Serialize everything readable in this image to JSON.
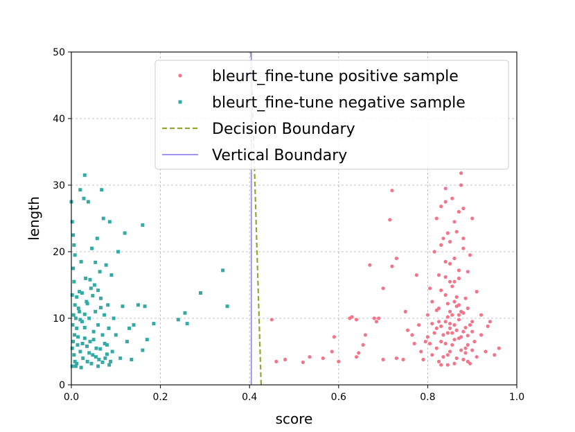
{
  "chart_data": {
    "type": "scatter",
    "xlabel": "score",
    "ylabel": "length",
    "xlim": [
      0.0,
      1.0
    ],
    "ylim": [
      0,
      50
    ],
    "xticks": [
      "0.0",
      "0.2",
      "0.4",
      "0.6",
      "0.8",
      "1.0"
    ],
    "yticks": [
      "0",
      "10",
      "20",
      "30",
      "40",
      "50"
    ],
    "grid": true,
    "legend_position": "top-right",
    "colors": {
      "positive": "#f4748a",
      "negative": "#33aba4",
      "decision": "#96a431",
      "vertical": "#a192f0"
    },
    "series": [
      {
        "name": "bleurt_fine-tune positive sample",
        "kind": "scatter",
        "marker": "circle",
        "points": [
          [
            0.45,
            9.8
          ],
          [
            0.46,
            3.5
          ],
          [
            0.48,
            3.8
          ],
          [
            0.52,
            3.4
          ],
          [
            0.535,
            4.2
          ],
          [
            0.565,
            4.0
          ],
          [
            0.585,
            5.0
          ],
          [
            0.59,
            7.2
          ],
          [
            0.6,
            3.5
          ],
          [
            0.625,
            10.0
          ],
          [
            0.63,
            10.2
          ],
          [
            0.64,
            9.8
          ],
          [
            0.64,
            4.2
          ],
          [
            0.645,
            4.8
          ],
          [
            0.655,
            6.0
          ],
          [
            0.66,
            7.5
          ],
          [
            0.67,
            18.0
          ],
          [
            0.68,
            10.0
          ],
          [
            0.685,
            9.5
          ],
          [
            0.69,
            10.0
          ],
          [
            0.7,
            14.5
          ],
          [
            0.7,
            3.8
          ],
          [
            0.715,
            24.8
          ],
          [
            0.72,
            29.2
          ],
          [
            0.72,
            17.8
          ],
          [
            0.73,
            19.0
          ],
          [
            0.73,
            4.0
          ],
          [
            0.745,
            3.8
          ],
          [
            0.75,
            11.0
          ],
          [
            0.755,
            8.2
          ],
          [
            0.765,
            7.5
          ],
          [
            0.77,
            6.2
          ],
          [
            0.775,
            16.5
          ],
          [
            0.78,
            9.0
          ],
          [
            0.785,
            5.0
          ],
          [
            0.79,
            3.8
          ],
          [
            0.795,
            6.5
          ],
          [
            0.8,
            10.5
          ],
          [
            0.8,
            7.2
          ],
          [
            0.805,
            14.5
          ],
          [
            0.81,
            4.5
          ],
          [
            0.81,
            12.5
          ],
          [
            0.815,
            20.0
          ],
          [
            0.82,
            8.5
          ],
          [
            0.82,
            25.0
          ],
          [
            0.82,
            5.5
          ],
          [
            0.825,
            16.5
          ],
          [
            0.825,
            11.5
          ],
          [
            0.83,
            26.8
          ],
          [
            0.83,
            6.5
          ],
          [
            0.83,
            3.0
          ],
          [
            0.835,
            22.0
          ],
          [
            0.84,
            18.5
          ],
          [
            0.84,
            9.5
          ],
          [
            0.84,
            13.5
          ],
          [
            0.84,
            29.5
          ],
          [
            0.845,
            7.8
          ],
          [
            0.845,
            4.5
          ],
          [
            0.85,
            15.5
          ],
          [
            0.85,
            21.5
          ],
          [
            0.85,
            11.0
          ],
          [
            0.85,
            8.5
          ],
          [
            0.855,
            6.0
          ],
          [
            0.855,
            28.0
          ],
          [
            0.86,
            12.5
          ],
          [
            0.86,
            9.0
          ],
          [
            0.86,
            19.0
          ],
          [
            0.865,
            23.0
          ],
          [
            0.865,
            4.0
          ],
          [
            0.87,
            10.5
          ],
          [
            0.87,
            7.0
          ],
          [
            0.87,
            16.0
          ],
          [
            0.875,
            31.8
          ],
          [
            0.875,
            30.0
          ],
          [
            0.88,
            20.5
          ],
          [
            0.88,
            26.5
          ],
          [
            0.88,
            8.0
          ],
          [
            0.885,
            13.0
          ],
          [
            0.885,
            5.5
          ],
          [
            0.89,
            11.5
          ],
          [
            0.89,
            3.5
          ],
          [
            0.895,
            19.5
          ],
          [
            0.9,
            25.0
          ],
          [
            0.9,
            9.5
          ],
          [
            0.905,
            6.5
          ],
          [
            0.91,
            14.0
          ],
          [
            0.91,
            4.2
          ],
          [
            0.92,
            10.5
          ],
          [
            0.92,
            7.5
          ],
          [
            0.93,
            5.0
          ],
          [
            0.935,
            8.8
          ],
          [
            0.94,
            9.5
          ],
          [
            0.95,
            4.5
          ],
          [
            0.96,
            5.5
          ],
          [
            0.83,
            8.8
          ],
          [
            0.835,
            7.5
          ],
          [
            0.84,
            6.2
          ],
          [
            0.845,
            10.2
          ],
          [
            0.85,
            9.2
          ],
          [
            0.855,
            7.8
          ],
          [
            0.86,
            6.8
          ],
          [
            0.865,
            8.2
          ],
          [
            0.87,
            9.8
          ],
          [
            0.875,
            7.2
          ],
          [
            0.88,
            10.8
          ],
          [
            0.885,
            8.6
          ],
          [
            0.89,
            7.4
          ],
          [
            0.895,
            9.0
          ],
          [
            0.9,
            8.0
          ],
          [
            0.845,
            12.2
          ],
          [
            0.855,
            14.8
          ],
          [
            0.865,
            13.2
          ],
          [
            0.87,
            17.2
          ],
          [
            0.86,
            15.5
          ],
          [
            0.85,
            18.2
          ],
          [
            0.84,
            16.2
          ],
          [
            0.83,
            14.2
          ],
          [
            0.825,
            9.5
          ],
          [
            0.82,
            11.2
          ],
          [
            0.815,
            7.8
          ],
          [
            0.81,
            9.2
          ],
          [
            0.805,
            6.2
          ],
          [
            0.875,
            5.2
          ],
          [
            0.88,
            3.8
          ],
          [
            0.885,
            4.8
          ],
          [
            0.89,
            6.0
          ],
          [
            0.895,
            3.2
          ],
          [
            0.9,
            5.2
          ],
          [
            0.86,
            3.2
          ],
          [
            0.85,
            5.0
          ],
          [
            0.845,
            3.0
          ],
          [
            0.835,
            4.2
          ],
          [
            0.825,
            3.5
          ],
          [
            0.87,
            12.0
          ],
          [
            0.875,
            11.0
          ],
          [
            0.865,
            11.8
          ],
          [
            0.855,
            10.5
          ],
          [
            0.845,
            22.8
          ],
          [
            0.86,
            24.5
          ],
          [
            0.87,
            26.0
          ],
          [
            0.84,
            27.5
          ],
          [
            0.83,
            21.0
          ],
          [
            0.88,
            22.0
          ],
          [
            0.89,
            17.0
          ]
        ]
      },
      {
        "name": "bleurt_fine-tune negative sample",
        "kind": "scatter",
        "marker": "square",
        "points": [
          [
            0.0,
            27.5
          ],
          [
            0.002,
            24.5
          ],
          [
            0.004,
            22.5
          ],
          [
            0.006,
            21.0
          ],
          [
            0.008,
            19.5
          ],
          [
            0.004,
            17.5
          ],
          [
            0.006,
            15.5
          ],
          [
            0.002,
            13.5
          ],
          [
            0.008,
            12.0
          ],
          [
            0.005,
            10.5
          ],
          [
            0.003,
            9.0
          ],
          [
            0.007,
            7.5
          ],
          [
            0.004,
            6.5
          ],
          [
            0.002,
            5.5
          ],
          [
            0.006,
            4.5
          ],
          [
            0.008,
            3.5
          ],
          [
            0.01,
            2.8
          ],
          [
            0.012,
            8.5
          ],
          [
            0.014,
            6.0
          ],
          [
            0.016,
            11.5
          ],
          [
            0.018,
            14.0
          ],
          [
            0.02,
            29.3
          ],
          [
            0.02,
            5.0
          ],
          [
            0.022,
            18.5
          ],
          [
            0.024,
            9.5
          ],
          [
            0.026,
            4.0
          ],
          [
            0.028,
            28.0
          ],
          [
            0.03,
            31.5
          ],
          [
            0.03,
            7.0
          ],
          [
            0.032,
            16.0
          ],
          [
            0.034,
            12.5
          ],
          [
            0.036,
            3.5
          ],
          [
            0.038,
            27.5
          ],
          [
            0.04,
            10.0
          ],
          [
            0.042,
            6.5
          ],
          [
            0.044,
            14.5
          ],
          [
            0.046,
            20.5
          ],
          [
            0.048,
            4.5
          ],
          [
            0.05,
            8.0
          ],
          [
            0.052,
            15.0
          ],
          [
            0.054,
            11.0
          ],
          [
            0.056,
            5.5
          ],
          [
            0.058,
            22.0
          ],
          [
            0.06,
            9.0
          ],
          [
            0.062,
            3.8
          ],
          [
            0.064,
            17.0
          ],
          [
            0.066,
            13.0
          ],
          [
            0.068,
            29.3
          ],
          [
            0.07,
            7.5
          ],
          [
            0.072,
            25.0
          ],
          [
            0.074,
            10.5
          ],
          [
            0.076,
            4.0
          ],
          [
            0.078,
            18.0
          ],
          [
            0.08,
            6.0
          ],
          [
            0.082,
            12.0
          ],
          [
            0.084,
            8.5
          ],
          [
            0.086,
            24.5
          ],
          [
            0.088,
            3.5
          ],
          [
            0.09,
            16.5
          ],
          [
            0.092,
            5.0
          ],
          [
            0.095,
            10.0
          ],
          [
            0.1,
            7.5
          ],
          [
            0.105,
            20.0
          ],
          [
            0.11,
            4.0
          ],
          [
            0.115,
            11.8
          ],
          [
            0.12,
            22.8
          ],
          [
            0.125,
            6.5
          ],
          [
            0.13,
            8.5
          ],
          [
            0.135,
            3.8
          ],
          [
            0.14,
            9.0
          ],
          [
            0.15,
            12.0
          ],
          [
            0.16,
            24.0
          ],
          [
            0.16,
            5.2
          ],
          [
            0.165,
            11.8
          ],
          [
            0.17,
            6.8
          ],
          [
            0.185,
            9.2
          ],
          [
            0.24,
            9.8
          ],
          [
            0.255,
            10.8
          ],
          [
            0.26,
            9.2
          ],
          [
            0.29,
            13.8
          ],
          [
            0.34,
            17.2
          ],
          [
            0.35,
            11.8
          ],
          [
            0.01,
            10.0
          ],
          [
            0.015,
            7.2
          ],
          [
            0.02,
            9.8
          ],
          [
            0.025,
            6.2
          ],
          [
            0.03,
            8.6
          ],
          [
            0.035,
            5.8
          ],
          [
            0.04,
            4.8
          ],
          [
            0.045,
            3.2
          ],
          [
            0.05,
            6.8
          ],
          [
            0.055,
            4.2
          ],
          [
            0.06,
            2.8
          ],
          [
            0.065,
            5.4
          ],
          [
            0.07,
            3.4
          ],
          [
            0.075,
            6.2
          ],
          [
            0.08,
            4.6
          ],
          [
            0.085,
            3.0
          ],
          [
            0.012,
            13.2
          ],
          [
            0.018,
            11.0
          ],
          [
            0.024,
            13.8
          ],
          [
            0.03,
            10.6
          ],
          [
            0.036,
            12.2
          ],
          [
            0.042,
            15.8
          ],
          [
            0.048,
            13.4
          ],
          [
            0.054,
            18.4
          ],
          [
            0.06,
            14.2
          ],
          [
            0.066,
            11.6
          ],
          [
            0.002,
            2.8
          ],
          [
            0.012,
            3.2
          ],
          [
            0.022,
            2.6
          ]
        ]
      },
      {
        "name": "Decision Boundary",
        "kind": "line",
        "style": "dashed",
        "points": [
          [
            0.403,
            50
          ],
          [
            0.426,
            0
          ]
        ]
      },
      {
        "name": "Vertical Boundary",
        "kind": "line",
        "style": "solid",
        "points": [
          [
            0.404,
            0
          ],
          [
            0.404,
            50
          ]
        ]
      }
    ]
  }
}
